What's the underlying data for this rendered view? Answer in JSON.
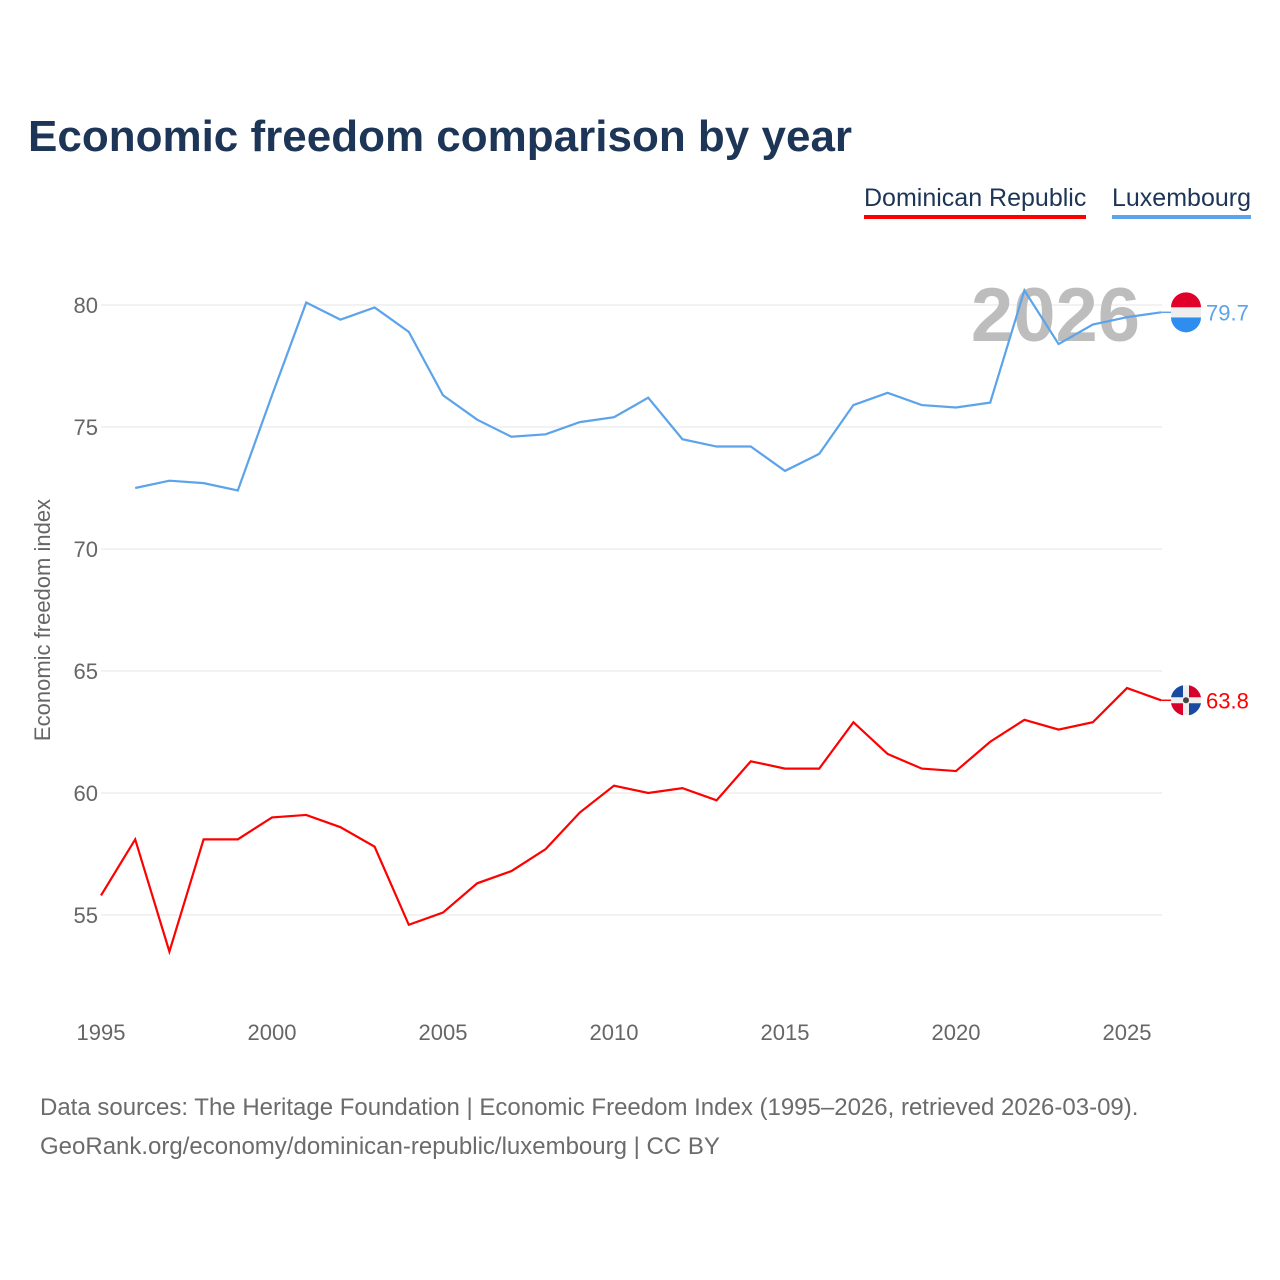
{
  "title": "Economic freedom comparison by year",
  "legend": [
    "Dominican Republic",
    "Luxembourg"
  ],
  "source_line1": "Data sources: The Heritage Foundation | Economic Freedom Index (1995–2026, retrieved 2026-03-09).",
  "source_line2": "GeoRank.org/economy/dominican-republic/luxembourg | CC BY",
  "chart_data": {
    "type": "line",
    "title": "Economic freedom comparison by year",
    "ylabel": "Economic freedom index",
    "xlabel": "",
    "ylim": [
      51,
      82
    ],
    "xlim": [
      1995,
      2026
    ],
    "yticks": [
      55,
      60,
      65,
      70,
      75,
      80
    ],
    "xticks": [
      1995,
      2000,
      2005,
      2010,
      2015,
      2020,
      2025
    ],
    "year_label": "2026",
    "grid": true,
    "legend_position": "top-right",
    "series": [
      {
        "name": "Dominican Republic",
        "color": "#ff0000",
        "end_label": "63.8",
        "start": 1995,
        "values": [
          55.8,
          58.1,
          53.5,
          58.1,
          58.1,
          59.0,
          59.1,
          58.6,
          57.8,
          54.6,
          55.1,
          56.3,
          56.8,
          57.7,
          59.2,
          60.3,
          60.0,
          60.2,
          59.7,
          61.3,
          61.0,
          61.0,
          62.9,
          61.6,
          61.0,
          60.9,
          62.1,
          63.0,
          62.6,
          62.9,
          64.3,
          63.8
        ]
      },
      {
        "name": "Luxembourg",
        "color": "#5ba3ea",
        "end_label": "79.7",
        "start": 1996,
        "values": [
          72.5,
          72.8,
          72.7,
          72.4,
          76.3,
          80.1,
          79.4,
          79.9,
          78.9,
          76.3,
          75.3,
          74.6,
          74.7,
          75.2,
          75.4,
          76.2,
          74.5,
          74.2,
          74.2,
          73.2,
          73.9,
          75.9,
          76.4,
          75.9,
          75.8,
          76.0,
          80.6,
          78.4,
          79.2,
          79.5,
          79.7
        ]
      }
    ]
  }
}
